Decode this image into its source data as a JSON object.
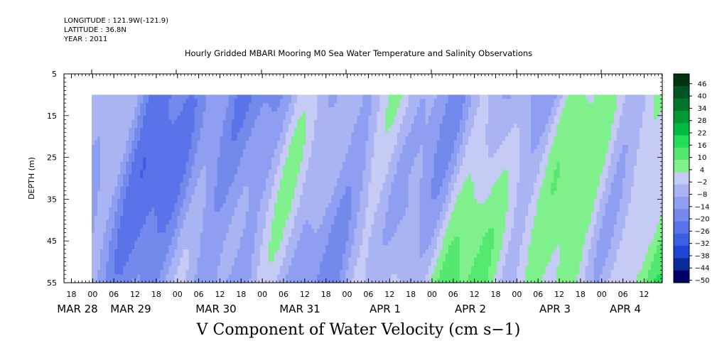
{
  "meta": {
    "longitude": "LONGITUDE : 121.9W(-121.9)",
    "latitude": "LATITUDE : 36.8N",
    "year": "YEAR : 2011"
  },
  "chart_data": {
    "type": "heatmap",
    "title": "Hourly Gridded MBARI Mooring M0 Sea Water Temperature and Salinity Observations",
    "variable_label": "V Component of Water Velocity (cm s−1)",
    "ylabel": "DEPTH (m)",
    "ylim": [
      55,
      5
    ],
    "y_ticks": [
      5,
      15,
      25,
      35,
      45,
      55
    ],
    "data_depth_range": [
      10,
      55
    ],
    "x_hour_labels": [
      "18",
      "00",
      "06",
      "12",
      "18",
      "00",
      "06",
      "12",
      "18",
      "00",
      "06",
      "12",
      "18",
      "00",
      "06",
      "12",
      "18",
      "00",
      "06",
      "12",
      "18",
      "00",
      "06",
      "12",
      "18",
      "00",
      "06",
      "12"
    ],
    "date_labels": [
      "MAR 28",
      "MAR 29",
      "MAR 30",
      "MAR 31",
      "APR  1",
      "APR  2",
      "APR  3",
      "APR  4"
    ],
    "colorbar": {
      "labels": [
        "46",
        "40",
        "34",
        "28",
        "22",
        "16",
        "10",
        "4",
        "−2",
        "−8",
        "−14",
        "−20",
        "−26",
        "−32",
        "−38",
        "−44",
        "−50"
      ],
      "min": -50,
      "max": 52,
      "step": 6,
      "colors": {
        "dark_blue": "#000066",
        "blue": "#2255ee",
        "light_blue": "#8a9ff2",
        "lavender": "#b6bdf3",
        "light_green": "#9af0a8",
        "green": "#22dd55",
        "dark_green": "#003311"
      }
    },
    "field_description_rows": [
      {
        "depth_hint": "shallow",
        "dominant": "blue to lavender with green patches after APR 1"
      },
      {
        "depth_hint": "deep",
        "dominant": "blue with green patches increasing after APR 2"
      }
    ]
  }
}
